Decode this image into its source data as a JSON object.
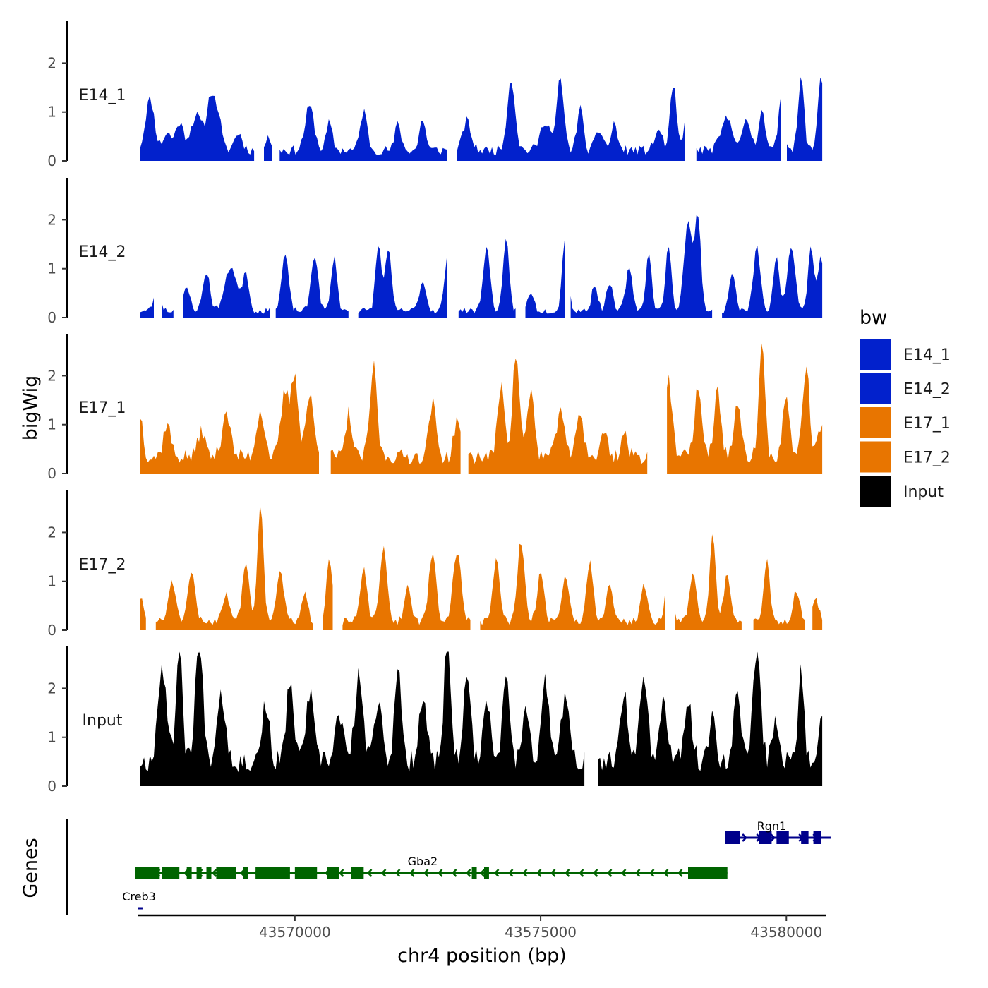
{
  "chart_data": {
    "type": "area",
    "y_axis_title": "bigWig",
    "x_axis_title": "chr4 position (bp)",
    "x_range": [
      43566800,
      43580800
    ],
    "x_ticks": [
      43570000,
      43575000,
      43580000
    ],
    "x_tick_labels": [
      "43570000",
      "43575000",
      "43580000"
    ],
    "y_range": [
      0,
      2.8
    ],
    "y_ticks": [
      0,
      1,
      2
    ],
    "y_tick_labels": [
      "0",
      "1",
      "2"
    ],
    "tracks": [
      {
        "name": "E14_1",
        "color": "#0221cc",
        "seed": 11,
        "base": 0.22,
        "gaps": [
          [
            43569200,
            43569350
          ],
          [
            43569560,
            43569660
          ],
          [
            43573100,
            43573250
          ],
          [
            43577950,
            43578150
          ],
          [
            43579900,
            43580000
          ]
        ],
        "peaks": [
          [
            43567050,
            1.05,
            90
          ],
          [
            43567400,
            0.35,
            80
          ],
          [
            43567650,
            0.55,
            80
          ],
          [
            43568000,
            0.7,
            120
          ],
          [
            43568300,
            1.15,
            80
          ],
          [
            43568450,
            0.6,
            60
          ],
          [
            43568850,
            0.35,
            80
          ],
          [
            43569450,
            0.3,
            60
          ],
          [
            43570300,
            0.9,
            90
          ],
          [
            43570700,
            0.55,
            60
          ],
          [
            43571400,
            0.8,
            70
          ],
          [
            43572100,
            0.55,
            60
          ],
          [
            43572600,
            0.65,
            60
          ],
          [
            43573500,
            0.6,
            80
          ],
          [
            43574400,
            1.45,
            80
          ],
          [
            43575100,
            0.6,
            100
          ],
          [
            43575400,
            1.45,
            70
          ],
          [
            43575800,
            0.9,
            60
          ],
          [
            43576200,
            0.4,
            80
          ],
          [
            43576500,
            0.55,
            60
          ],
          [
            43577400,
            0.4,
            80
          ],
          [
            43577700,
            1.35,
            60
          ],
          [
            43578000,
            0.85,
            70
          ],
          [
            43578800,
            0.65,
            120
          ],
          [
            43579200,
            0.6,
            80
          ],
          [
            43579500,
            0.9,
            60
          ],
          [
            43579900,
            1.2,
            60
          ],
          [
            43580300,
            1.45,
            60
          ],
          [
            43580700,
            1.55,
            60
          ]
        ]
      },
      {
        "name": "E14_2",
        "color": "#0221cc",
        "seed": 23,
        "base": 0.14,
        "gaps": [
          [
            43567150,
            43567250
          ],
          [
            43567550,
            43567700
          ],
          [
            43569500,
            43569600
          ],
          [
            43571100,
            43571250
          ],
          [
            43573100,
            43573300
          ],
          [
            43574500,
            43574650
          ],
          [
            43575500,
            43575600
          ],
          [
            43578500,
            43578650
          ]
        ],
        "peaks": [
          [
            43567200,
            0.4,
            70
          ],
          [
            43567800,
            0.45,
            70
          ],
          [
            43568200,
            0.8,
            70
          ],
          [
            43568700,
            0.9,
            120
          ],
          [
            43569000,
            0.8,
            60
          ],
          [
            43569800,
            1.15,
            70
          ],
          [
            43570400,
            1.15,
            70
          ],
          [
            43570800,
            1.1,
            60
          ],
          [
            43571700,
            1.35,
            60
          ],
          [
            43571900,
            1.3,
            60
          ],
          [
            43572600,
            0.6,
            70
          ],
          [
            43573100,
            1.05,
            60
          ],
          [
            43573900,
            1.3,
            70
          ],
          [
            43574300,
            1.45,
            60
          ],
          [
            43574800,
            0.4,
            60
          ],
          [
            43575500,
            1.5,
            60
          ],
          [
            43576100,
            0.55,
            60
          ],
          [
            43576400,
            0.6,
            60
          ],
          [
            43576800,
            0.85,
            70
          ],
          [
            43577200,
            1.15,
            60
          ],
          [
            43577600,
            1.3,
            60
          ],
          [
            43578000,
            1.85,
            80
          ],
          [
            43578200,
            1.95,
            60
          ],
          [
            43578900,
            0.8,
            60
          ],
          [
            43579400,
            1.3,
            70
          ],
          [
            43579800,
            1.1,
            60
          ],
          [
            43580100,
            1.35,
            80
          ],
          [
            43580500,
            1.3,
            60
          ],
          [
            43580700,
            1.1,
            60
          ]
        ]
      },
      {
        "name": "E17_1",
        "color": "#e87500",
        "seed": 37,
        "base": 0.35,
        "gaps": [
          [
            43570500,
            43570700
          ],
          [
            43573400,
            43573500
          ],
          [
            43577200,
            43577550
          ]
        ],
        "peaks": [
          [
            43566850,
            0.85,
            60
          ],
          [
            43567400,
            0.7,
            70
          ],
          [
            43568100,
            0.55,
            70
          ],
          [
            43568600,
            0.95,
            80
          ],
          [
            43569300,
            0.95,
            80
          ],
          [
            43569800,
            1.3,
            80
          ],
          [
            43570000,
            1.65,
            70
          ],
          [
            43570300,
            1.25,
            80
          ],
          [
            43571100,
            0.9,
            60
          ],
          [
            43571600,
            1.85,
            70
          ],
          [
            43572800,
            1.1,
            70
          ],
          [
            43573300,
            0.8,
            60
          ],
          [
            43574200,
            1.5,
            70
          ],
          [
            43574500,
            2.1,
            70
          ],
          [
            43574800,
            1.35,
            70
          ],
          [
            43575400,
            1.05,
            70
          ],
          [
            43575800,
            0.95,
            70
          ],
          [
            43576300,
            0.55,
            60
          ],
          [
            43576700,
            0.5,
            60
          ],
          [
            43577600,
            1.6,
            70
          ],
          [
            43578200,
            1.45,
            70
          ],
          [
            43578600,
            1.35,
            70
          ],
          [
            43579000,
            1.05,
            70
          ],
          [
            43579500,
            2.35,
            60
          ],
          [
            43580000,
            1.2,
            70
          ],
          [
            43580400,
            1.85,
            70
          ],
          [
            43580700,
            0.6,
            60
          ]
        ]
      },
      {
        "name": "E17_2",
        "color": "#e87500",
        "seed": 51,
        "base": 0.18,
        "gaps": [
          [
            43567000,
            43567150
          ],
          [
            43570400,
            43570550
          ],
          [
            43570800,
            43570950
          ],
          [
            43573600,
            43573750
          ],
          [
            43577550,
            43577700
          ],
          [
            43579100,
            43579300
          ],
          [
            43580400,
            43580500
          ]
        ],
        "peaks": [
          [
            43566850,
            0.5,
            60
          ],
          [
            43567500,
            0.85,
            70
          ],
          [
            43567900,
            1.0,
            70
          ],
          [
            43568600,
            0.55,
            80
          ],
          [
            43569000,
            1.2,
            70
          ],
          [
            43569300,
            2.45,
            60
          ],
          [
            43569700,
            1.1,
            70
          ],
          [
            43570200,
            0.55,
            60
          ],
          [
            43570700,
            1.35,
            60
          ],
          [
            43571400,
            1.05,
            70
          ],
          [
            43571800,
            1.5,
            70
          ],
          [
            43572300,
            0.7,
            70
          ],
          [
            43572800,
            1.45,
            70
          ],
          [
            43573300,
            1.45,
            80
          ],
          [
            43574100,
            1.25,
            70
          ],
          [
            43574600,
            1.65,
            70
          ],
          [
            43575000,
            1.0,
            70
          ],
          [
            43575500,
            0.95,
            70
          ],
          [
            43576000,
            1.2,
            70
          ],
          [
            43576400,
            0.8,
            70
          ],
          [
            43577100,
            0.7,
            70
          ],
          [
            43577600,
            0.85,
            70
          ],
          [
            43578100,
            1.0,
            70
          ],
          [
            43578500,
            1.8,
            60
          ],
          [
            43578800,
            0.95,
            70
          ],
          [
            43579600,
            1.25,
            60
          ],
          [
            43580200,
            0.6,
            70
          ],
          [
            43580600,
            0.4,
            70
          ]
        ]
      },
      {
        "name": "Input",
        "color": "#000000",
        "seed": 67,
        "base": 0.5,
        "gaps": [
          [
            43575900,
            43576150
          ]
        ],
        "peaks": [
          [
            43567300,
            1.95,
            90
          ],
          [
            43567650,
            2.7,
            60
          ],
          [
            43568050,
            2.45,
            80
          ],
          [
            43568500,
            1.4,
            90
          ],
          [
            43569400,
            1.15,
            80
          ],
          [
            43569900,
            1.7,
            70
          ],
          [
            43570300,
            1.4,
            80
          ],
          [
            43570900,
            1.0,
            80
          ],
          [
            43571300,
            1.75,
            80
          ],
          [
            43571700,
            1.3,
            80
          ],
          [
            43572100,
            1.8,
            70
          ],
          [
            43572600,
            1.35,
            80
          ],
          [
            43573100,
            2.75,
            60
          ],
          [
            43573500,
            1.55,
            80
          ],
          [
            43573900,
            1.35,
            70
          ],
          [
            43574300,
            1.85,
            70
          ],
          [
            43574700,
            1.25,
            70
          ],
          [
            43575100,
            1.6,
            80
          ],
          [
            43575500,
            1.35,
            80
          ],
          [
            43576700,
            1.4,
            70
          ],
          [
            43577100,
            1.8,
            80
          ],
          [
            43577500,
            1.3,
            70
          ],
          [
            43578000,
            1.2,
            80
          ],
          [
            43578500,
            0.95,
            70
          ],
          [
            43579000,
            1.4,
            80
          ],
          [
            43579400,
            2.15,
            80
          ],
          [
            43579800,
            0.85,
            70
          ],
          [
            43580300,
            1.9,
            60
          ],
          [
            43580700,
            0.85,
            60
          ]
        ]
      }
    ],
    "legend": {
      "title": "bw",
      "position": "right",
      "entries": [
        {
          "label": "E14_1",
          "color": "#0221cc"
        },
        {
          "label": "E14_2",
          "color": "#0221cc"
        },
        {
          "label": "E17_1",
          "color": "#e87500"
        },
        {
          "label": "E17_2",
          "color": "#e87500"
        },
        {
          "label": "Input",
          "color": "#000000"
        }
      ]
    },
    "genes_title": "Genes",
    "genes": [
      {
        "name": "Rgn1",
        "strand": "+",
        "color": "#00008b",
        "row": 0,
        "start": 43578750,
        "end": 43580900,
        "label_pos": 43579700,
        "exons": [
          [
            43578750,
            43579050
          ],
          [
            43579450,
            43579700
          ],
          [
            43579800,
            43580050
          ],
          [
            43580300,
            43580450
          ],
          [
            43580550,
            43580700
          ]
        ]
      },
      {
        "name": "Gba2",
        "strand": "-",
        "color": "#006400",
        "row": 1,
        "start": 43566750,
        "end": 43578800,
        "label_pos": 43572600,
        "exons": [
          [
            43566750,
            43567250
          ],
          [
            43567300,
            43567650
          ],
          [
            43567800,
            43567900
          ],
          [
            43568000,
            43568100
          ],
          [
            43568200,
            43568300
          ],
          [
            43568400,
            43568800
          ],
          [
            43568950,
            43569050
          ],
          [
            43569200,
            43569900
          ],
          [
            43570000,
            43570450
          ],
          [
            43570650,
            43570900
          ],
          [
            43571150,
            43571400
          ],
          [
            43573600,
            43573700
          ],
          [
            43573850,
            43573950
          ],
          [
            43578000,
            43578800
          ]
        ]
      },
      {
        "name": "Creb3",
        "strand": "+",
        "color": "#00008b",
        "row": 2,
        "start": 43566800,
        "end": 43566900,
        "label_pos": 43566800,
        "exons": []
      }
    ]
  }
}
